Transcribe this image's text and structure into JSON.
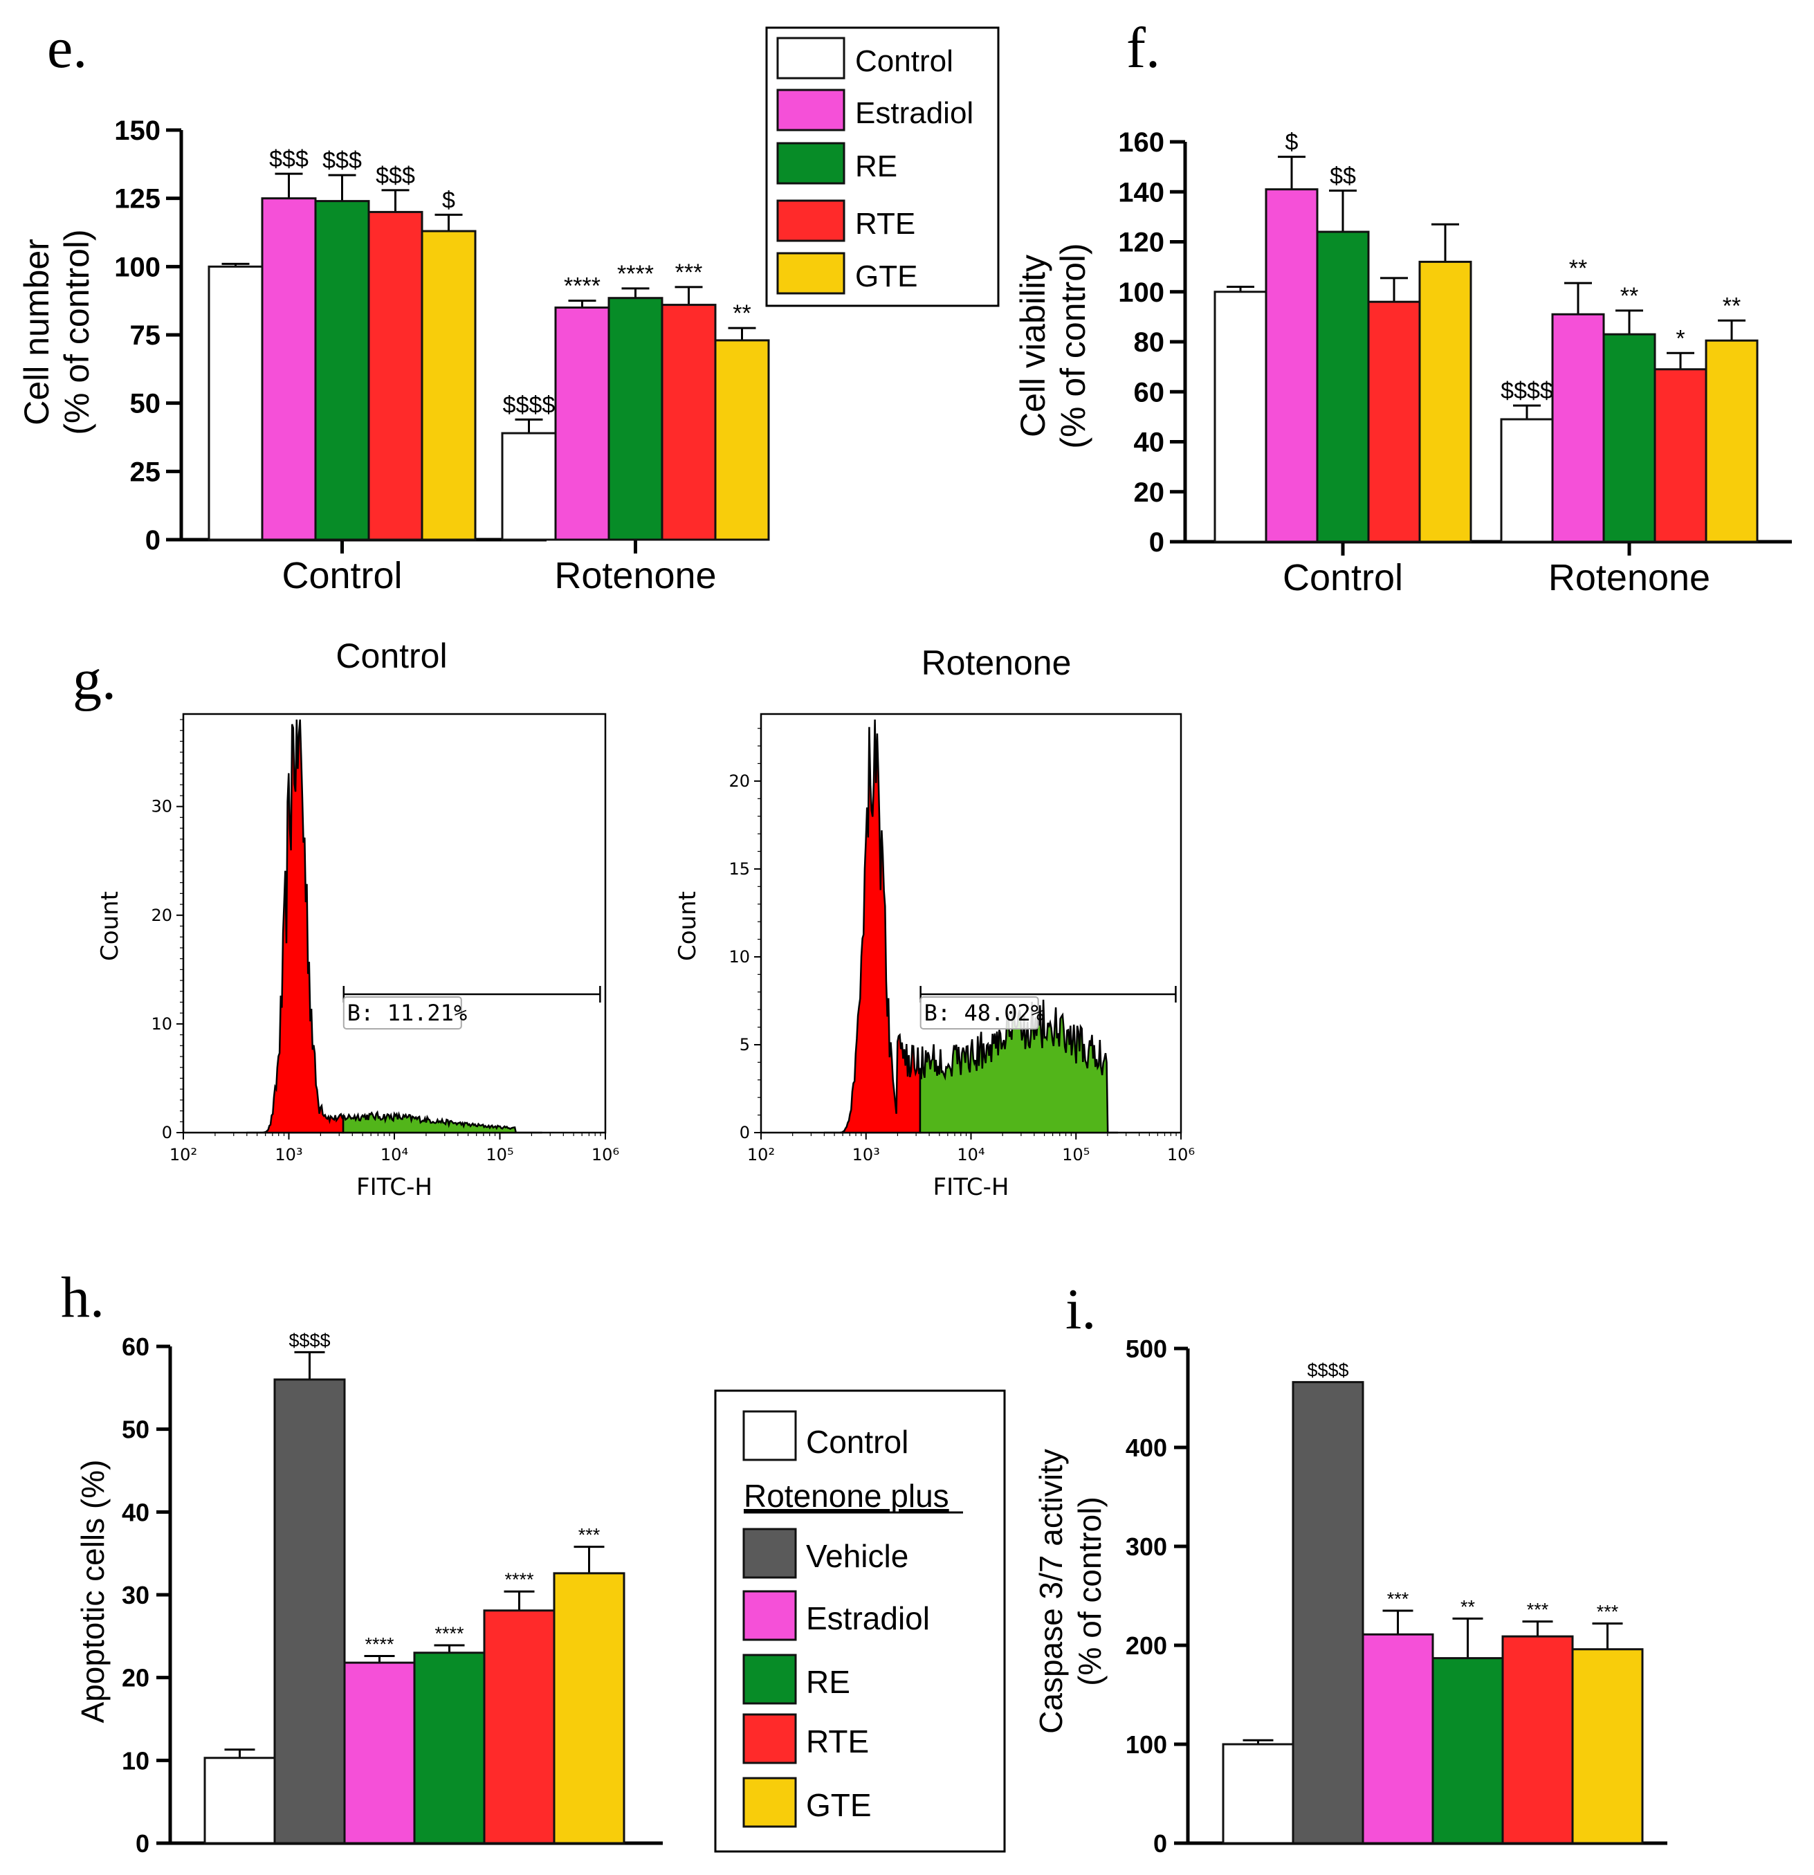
{
  "colors": {
    "Control": "#ffffff",
    "Vehicle": "#5a5a5a",
    "Estradiol": "#f550d8",
    "RE": "#078c27",
    "RTE": "#ff2a2a",
    "GTE": "#f8cd0b",
    "flow_red": "#ff0000",
    "flow_green": "#52b51a"
  },
  "panel_e_legend": {
    "items": [
      {
        "name": "Control",
        "color": "#ffffff"
      },
      {
        "name": "Estradiol",
        "color": "#f550d8"
      },
      {
        "name": "RE",
        "color": "#078c27"
      },
      {
        "name": "RTE",
        "color": "#ff2a2a"
      },
      {
        "name": "GTE",
        "color": "#f8cd0b"
      }
    ]
  },
  "panel_hi_legend": {
    "control_label": "Control",
    "heading": "Rotenone plus",
    "items": [
      {
        "name": "Vehicle",
        "color": "#5a5a5a"
      },
      {
        "name": "Estradiol",
        "color": "#f550d8"
      },
      {
        "name": "RE",
        "color": "#078c27"
      },
      {
        "name": "RTE",
        "color": "#ff2a2a"
      },
      {
        "name": "GTE",
        "color": "#f8cd0b"
      }
    ]
  },
  "chart_data": [
    {
      "panel": "e.",
      "type": "bar",
      "ylabel": [
        "Cell number",
        "(% of control)"
      ],
      "ylim": [
        0,
        150
      ],
      "yticks": [
        0,
        25,
        50,
        75,
        100,
        125,
        150
      ],
      "categories": [
        "Control",
        "Rotenone"
      ],
      "series": [
        {
          "name": "Control",
          "values": [
            100,
            39
          ],
          "errors": [
            1,
            5
          ],
          "labels": [
            "",
            "$$$$"
          ]
        },
        {
          "name": "Estradiol",
          "values": [
            125,
            85
          ],
          "errors": [
            9,
            2.5
          ],
          "labels": [
            "$$$",
            "****"
          ]
        },
        {
          "name": "RE",
          "values": [
            124,
            88.5
          ],
          "errors": [
            9.5,
            3.5
          ],
          "labels": [
            "$$$",
            "****"
          ]
        },
        {
          "name": "RTE",
          "values": [
            120,
            86
          ],
          "errors": [
            8,
            6.5
          ],
          "labels": [
            "$$$",
            "***"
          ]
        },
        {
          "name": "GTE",
          "values": [
            113,
            73
          ],
          "errors": [
            6,
            4.5
          ],
          "labels": [
            "$",
            "**"
          ]
        }
      ]
    },
    {
      "panel": "f.",
      "type": "bar",
      "ylabel": [
        "Cell viability",
        "(% of control)"
      ],
      "ylim": [
        0,
        160
      ],
      "yticks": [
        0,
        20,
        40,
        60,
        80,
        100,
        120,
        140,
        160
      ],
      "categories": [
        "Control",
        "Rotenone"
      ],
      "series": [
        {
          "name": "Control",
          "values": [
            100,
            49
          ],
          "errors": [
            2,
            5.5
          ],
          "labels": [
            "",
            "$$$$"
          ]
        },
        {
          "name": "Estradiol",
          "values": [
            141,
            91
          ],
          "errors": [
            13,
            12.5
          ],
          "labels": [
            "$",
            "**"
          ]
        },
        {
          "name": "RE",
          "values": [
            124,
            83
          ],
          "errors": [
            16.5,
            9.5
          ],
          "labels": [
            "$$",
            "**"
          ]
        },
        {
          "name": "RTE",
          "values": [
            96,
            69
          ],
          "errors": [
            9.5,
            6.5
          ],
          "labels": [
            "",
            "*"
          ]
        },
        {
          "name": "GTE",
          "values": [
            112,
            80.5
          ],
          "errors": [
            15,
            8
          ],
          "labels": [
            "",
            "**"
          ]
        }
      ]
    },
    {
      "panel": "g.",
      "type": "histogram",
      "xlabel": "FITC-H",
      "ylabel": "Count",
      "xticks": [
        "10²",
        "10³",
        "10⁴",
        "10⁵",
        "10⁶"
      ],
      "plots": [
        {
          "title": "Control",
          "ylim": [
            0,
            38
          ],
          "yticks": [
            0,
            10,
            20,
            30
          ],
          "gate_label": "B: 11.21%",
          "gate_percent": 11.21,
          "peak_count": 37.5
        },
        {
          "title": "Rotenone",
          "ylim": [
            0,
            23.5
          ],
          "yticks": [
            0,
            5,
            10,
            15,
            20
          ],
          "gate_label": "B: 48.02%",
          "gate_percent": 48.02,
          "peak_count": 22.8
        }
      ]
    },
    {
      "panel": "h.",
      "type": "bar",
      "ylabel": [
        "Apoptotic cells (%)"
      ],
      "ylim": [
        0,
        60
      ],
      "yticks": [
        0,
        10,
        20,
        30,
        40,
        50,
        60
      ],
      "categories": [
        "Control",
        "Vehicle",
        "Estradiol",
        "RE",
        "RTE",
        "GTE"
      ],
      "values": [
        10.3,
        56,
        21.8,
        23,
        28.1,
        32.6
      ],
      "errors": [
        1,
        3.3,
        0.8,
        0.9,
        2.3,
        3.2
      ],
      "labels": [
        "",
        "$$$$",
        "****",
        "****",
        "****",
        "***"
      ]
    },
    {
      "panel": "i.",
      "type": "bar",
      "ylabel": [
        "Caspase 3/7 activity",
        "(% of control)"
      ],
      "ylim": [
        0,
        500
      ],
      "yticks": [
        0,
        100,
        200,
        300,
        400,
        500
      ],
      "categories": [
        "Control",
        "Vehicle",
        "Estradiol",
        "RE",
        "RTE",
        "GTE"
      ],
      "values": [
        100,
        466,
        211,
        187,
        209,
        196
      ],
      "errors": [
        4,
        0,
        24,
        40,
        15,
        26
      ],
      "labels": [
        "",
        "$$$$",
        "***",
        "**",
        "***",
        "***"
      ]
    }
  ]
}
